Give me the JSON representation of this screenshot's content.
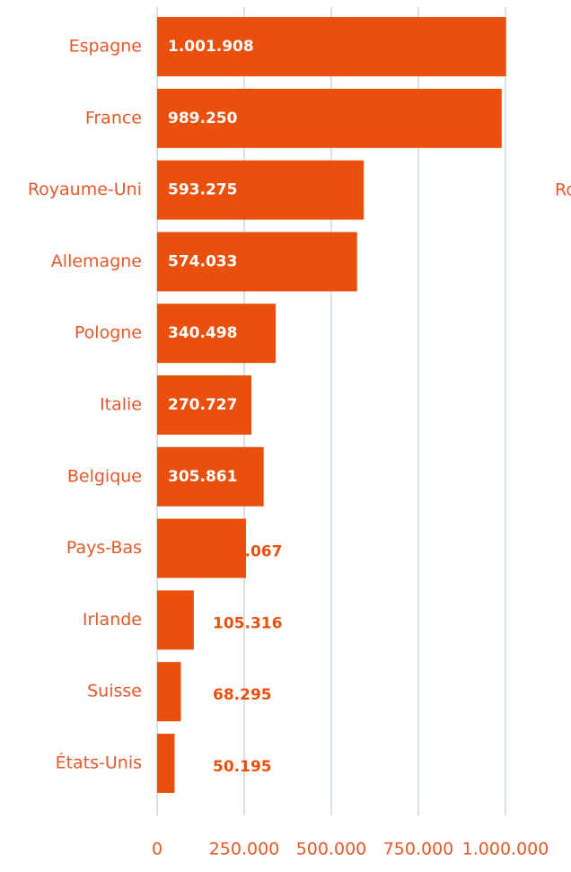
{
  "chart_data": {
    "type": "hbar",
    "categories": [
      "Espagne",
      "France",
      "Royaume-Uni",
      "Allemagne",
      "Pologne",
      "Italie",
      "Belgique",
      "Pays-Bas",
      "Irlande",
      "Suisse",
      "États-Unis"
    ],
    "values": [
      1001908,
      989250,
      593275,
      574033,
      340498,
      270727,
      305861,
      255067,
      105316,
      68295,
      50195
    ],
    "value_labels": [
      "1.001.908",
      "989.250",
      "593.275",
      "574.033",
      "340.498",
      "270.727",
      "305.861",
      "255.067",
      "105.316",
      "68.295",
      "50.195"
    ],
    "color": "#e9500e",
    "xlim": [
      0,
      1000000
    ],
    "xticks": [
      0,
      {
        "value": 250000,
        "label": "250.000"
      },
      {
        "value": 500000,
        "label": "500.000"
      },
      {
        "value": 750000,
        "label": "750.000"
      },
      {
        "value": 1000000,
        "label": "1.000.000"
      }
    ],
    "grid": true,
    "annotations": [
      "Ro"
    ]
  }
}
